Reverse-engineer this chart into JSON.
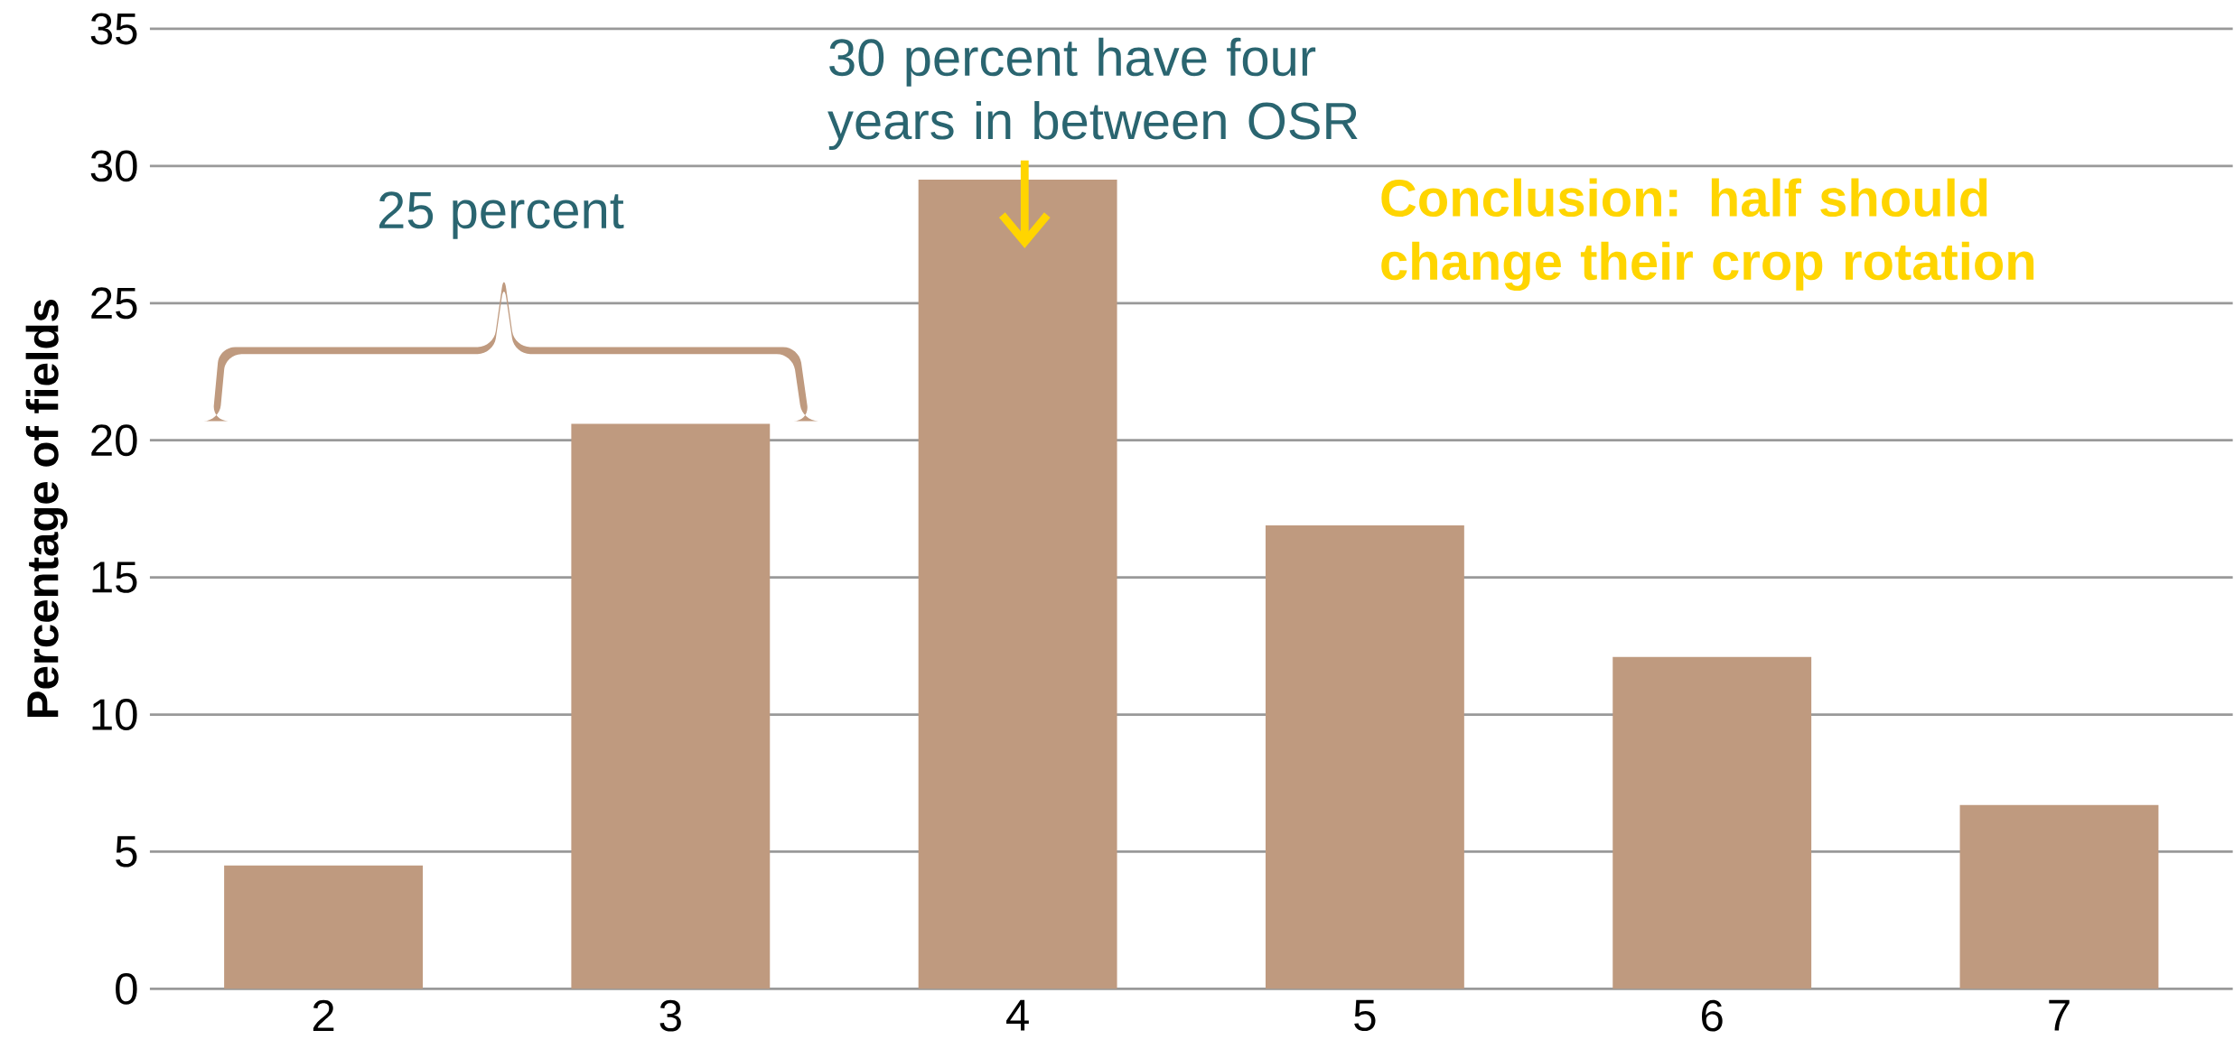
{
  "chart_data": {
    "type": "bar",
    "ylabel": "Percentage of fields",
    "categories": [
      "2",
      "3",
      "4",
      "5",
      "6",
      "7"
    ],
    "values": [
      4.5,
      20.6,
      29.5,
      16.9,
      12.1,
      6.7
    ],
    "color": "#bf9a7f",
    "ylim": [
      0,
      35
    ],
    "yticks": [
      0,
      5,
      10,
      15,
      20,
      25,
      30,
      35
    ],
    "grid": "y",
    "annotations": [
      "25 percent",
      "30 percent have four years  in between OSR",
      "Conclusion: half should change their crop rotation"
    ]
  }
}
